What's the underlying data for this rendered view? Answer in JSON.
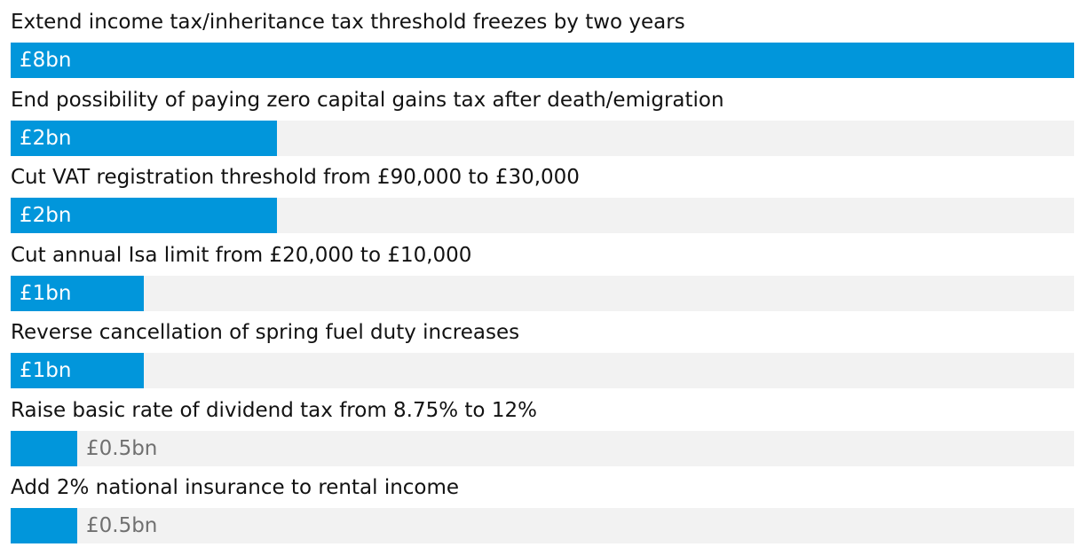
{
  "chart_data": {
    "type": "bar",
    "orientation": "horizontal",
    "unit": "£bn",
    "xlim": [
      0,
      8
    ],
    "grid": false,
    "categories": [
      "Extend income tax/inheritance tax threshold freezes by two years",
      "End possibility of paying zero capital gains tax after death/emigration",
      "Cut VAT registration threshold from £90,000 to £30,000",
      "Cut annual Isa limit from £20,000 to £10,000",
      "Reverse cancellation of spring fuel duty increases",
      "Raise basic rate of dividend tax from 8.75% to 12%",
      "Add 2% national insurance to rental income"
    ],
    "values": [
      8,
      2,
      2,
      1,
      1,
      0.5,
      0.5
    ],
    "value_labels": [
      "£8bn",
      "£2bn",
      "£2bn",
      "£1bn",
      "£1bn",
      "£0.5bn",
      "£0.5bn"
    ],
    "colors": {
      "bar": "#0196db",
      "track": "#f2f2f2",
      "label_text": "#121212",
      "value_inside": "#ffffff",
      "value_outside": "#707070"
    }
  }
}
